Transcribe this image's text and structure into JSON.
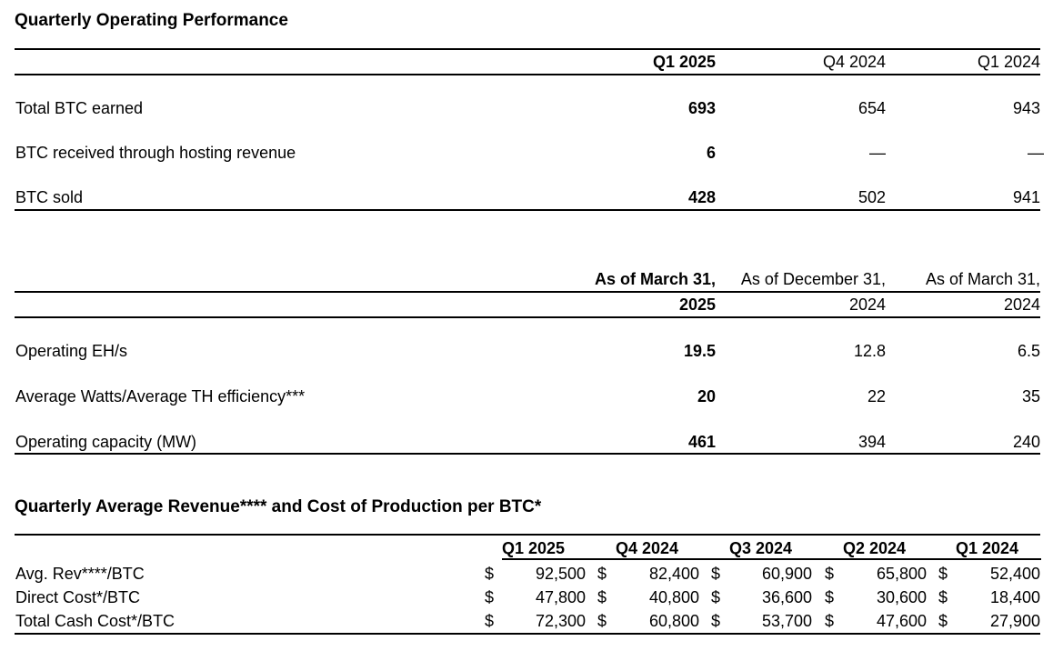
{
  "section1": {
    "title": "Quarterly Operating Performance",
    "headers": [
      "Q1 2025",
      "Q4 2024",
      "Q1 2024"
    ],
    "rows": [
      {
        "label": "Total BTC earned",
        "values": [
          "693",
          "654",
          "943"
        ]
      },
      {
        "label": "BTC received through hosting revenue",
        "values": [
          "6",
          "—",
          "—"
        ]
      },
      {
        "label": "BTC sold",
        "values": [
          "428",
          "502",
          "941"
        ]
      }
    ]
  },
  "section2": {
    "headers_top": [
      "As of March 31,",
      "As of December 31,",
      "As of March 31,"
    ],
    "headers_bottom": [
      "2025",
      "2024",
      "2024"
    ],
    "rows": [
      {
        "label": "Operating EH/s",
        "values": [
          "19.5",
          "12.8",
          "6.5"
        ]
      },
      {
        "label": "Average Watts/Average TH efficiency***",
        "values": [
          "20",
          "22",
          "35"
        ]
      },
      {
        "label": "Operating capacity (MW)",
        "values": [
          "461",
          "394",
          "240"
        ]
      }
    ]
  },
  "section3": {
    "title": "Quarterly Average Revenue**** and Cost of Production per BTC*",
    "headers": [
      "Q1 2025",
      "Q4 2024",
      "Q3 2024",
      "Q2 2024",
      "Q1 2024"
    ],
    "currency": "$",
    "rows": [
      {
        "label": "Avg. Rev****/BTC",
        "values": [
          "92,500",
          "82,400",
          "60,900",
          "65,800",
          "52,400"
        ]
      },
      {
        "label": "Direct Cost*/BTC",
        "values": [
          "47,800",
          "40,800",
          "36,600",
          "30,600",
          "18,400"
        ]
      },
      {
        "label": "Total Cash Cost*/BTC",
        "values": [
          "72,300",
          "60,800",
          "53,700",
          "47,600",
          "27,900"
        ]
      }
    ]
  }
}
